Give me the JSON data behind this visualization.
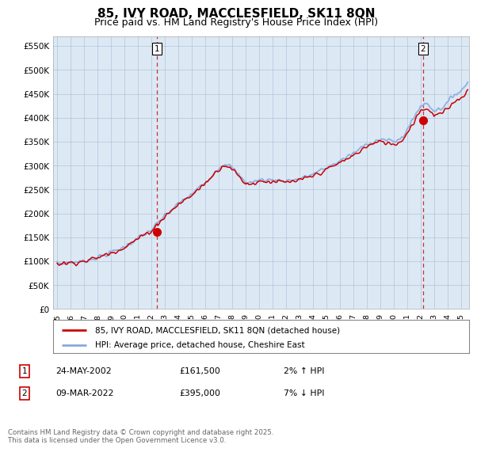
{
  "title": "85, IVY ROAD, MACCLESFIELD, SK11 8QN",
  "subtitle": "Price paid vs. HM Land Registry's House Price Index (HPI)",
  "ylabel_ticks": [
    "£0",
    "£50K",
    "£100K",
    "£150K",
    "£200K",
    "£250K",
    "£300K",
    "£350K",
    "£400K",
    "£450K",
    "£500K",
    "£550K"
  ],
  "ytick_values": [
    0,
    50000,
    100000,
    150000,
    200000,
    250000,
    300000,
    350000,
    400000,
    450000,
    500000,
    550000
  ],
  "ylim": [
    0,
    570000
  ],
  "xlim_start": 1994.7,
  "xlim_end": 2025.6,
  "marker1_x": 2002.39,
  "marker1_y": 161500,
  "marker1_label": "1",
  "marker2_x": 2022.18,
  "marker2_y": 395000,
  "marker2_label": "2",
  "line1_color": "#cc0000",
  "line2_color": "#88aadd",
  "chart_bg": "#dce9f5",
  "legend_line1": "85, IVY ROAD, MACCLESFIELD, SK11 8QN (detached house)",
  "legend_line2": "HPI: Average price, detached house, Cheshire East",
  "note1_label": "1",
  "note1_date": "24-MAY-2002",
  "note1_price": "£161,500",
  "note1_hpi": "2% ↑ HPI",
  "note2_label": "2",
  "note2_date": "09-MAR-2022",
  "note2_price": "£395,000",
  "note2_hpi": "7% ↓ HPI",
  "footer": "Contains HM Land Registry data © Crown copyright and database right 2025.\nThis data is licensed under the Open Government Licence v3.0.",
  "bg_color": "#ffffff",
  "grid_color": "#b0c4d8",
  "title_fontsize": 11,
  "subtitle_fontsize": 9
}
